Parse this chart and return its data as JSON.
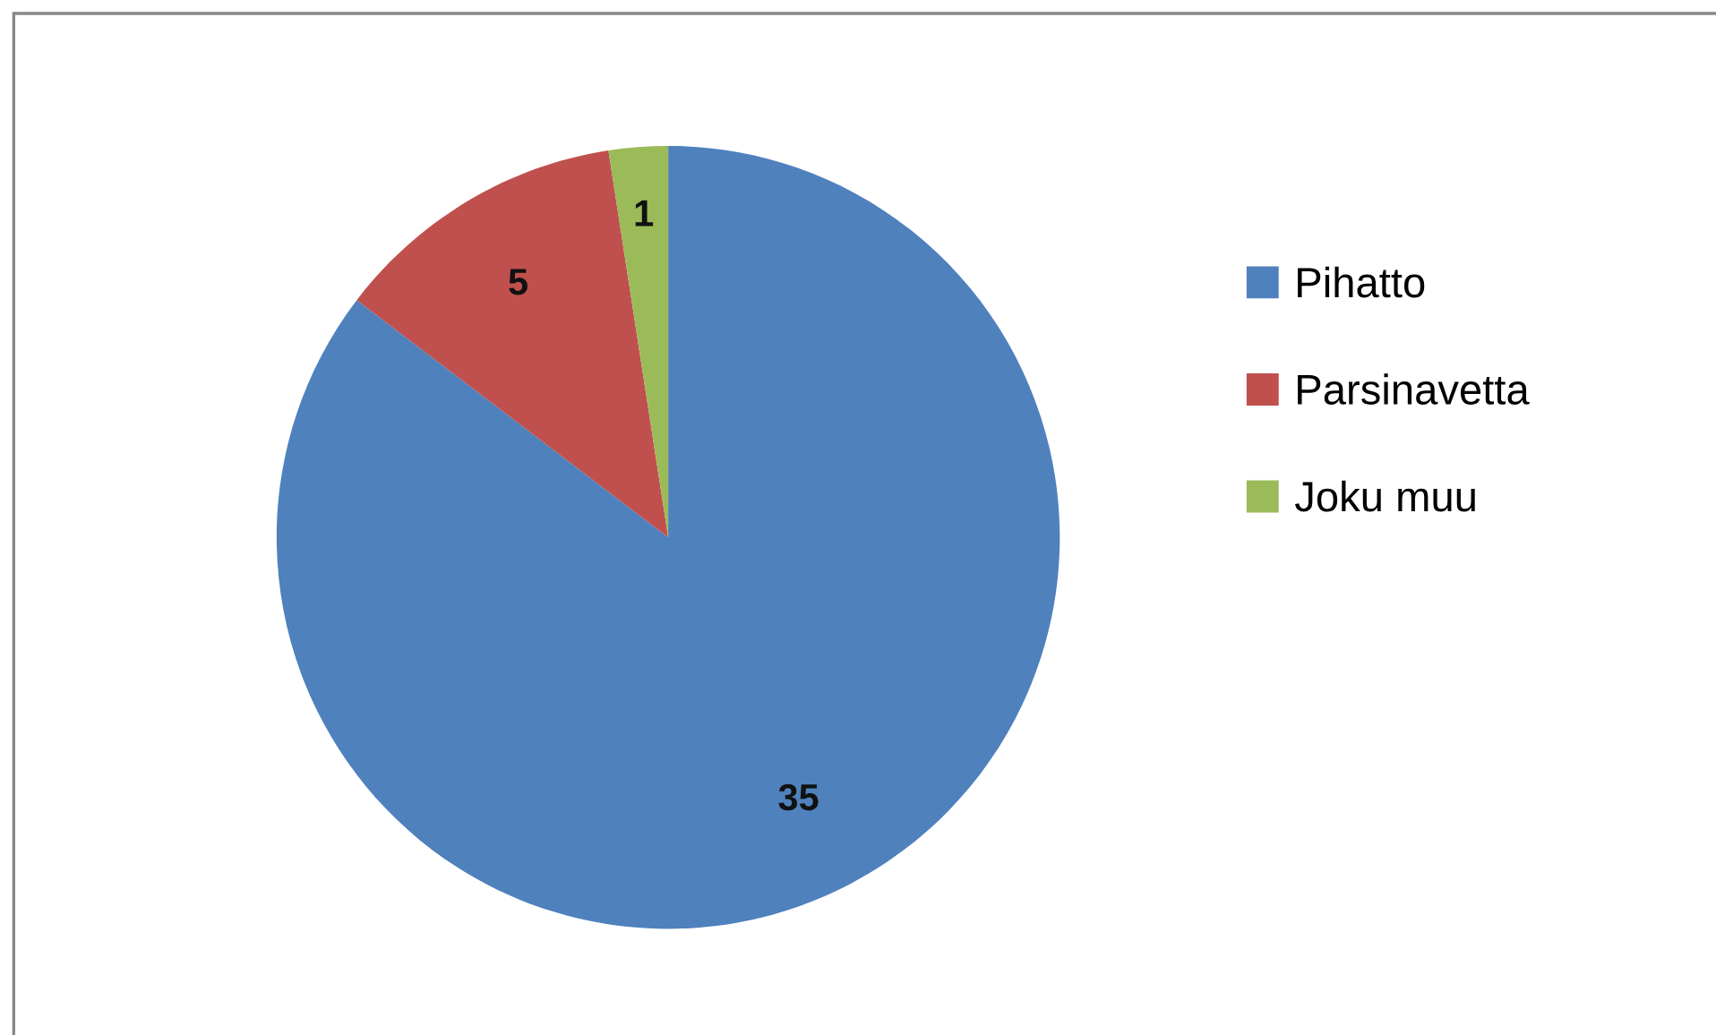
{
  "chart_data": {
    "type": "pie",
    "categories": [
      "Pihatto",
      "Parsinavetta",
      "Joku muu"
    ],
    "values": [
      35,
      5,
      1
    ],
    "colors": [
      "#4f81bd",
      "#c0504d",
      "#9bbb59"
    ],
    "data_labels": true,
    "legend": "right"
  }
}
